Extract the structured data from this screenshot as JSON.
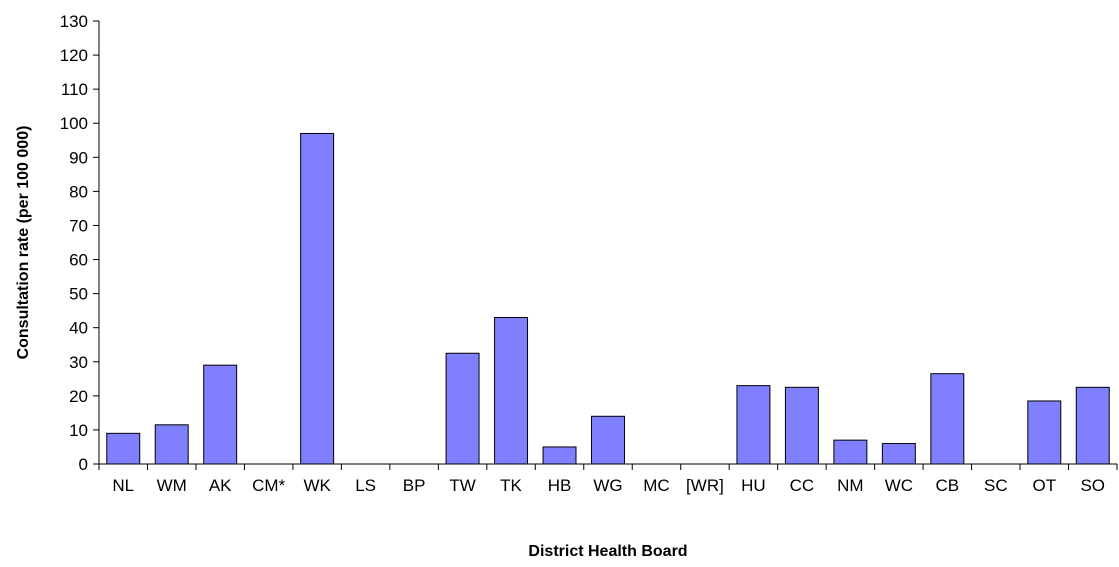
{
  "chart_data": {
    "type": "bar",
    "xlabel": "District Health Board",
    "ylabel": "Consultation rate (per 100 000)",
    "ylim": [
      0,
      130
    ],
    "yticks": [
      0,
      10,
      20,
      30,
      40,
      50,
      60,
      70,
      80,
      90,
      100,
      110,
      120,
      130
    ],
    "grid": false,
    "categories": [
      "NL",
      "WM",
      "AK",
      "CM*",
      "WK",
      "LS",
      "BP",
      "TW",
      "TK",
      "HB",
      "WG",
      "MC",
      "[WR]",
      "HU",
      "CC",
      "NM",
      "WC",
      "CB",
      "SC",
      "OT",
      "SO"
    ],
    "values": [
      9,
      11.5,
      29,
      0,
      97,
      0,
      0,
      32.5,
      43,
      5,
      14,
      0,
      0,
      23,
      22.5,
      7,
      6,
      26.5,
      0,
      18.5,
      22.5
    ],
    "bar_color": "#8080ff"
  }
}
